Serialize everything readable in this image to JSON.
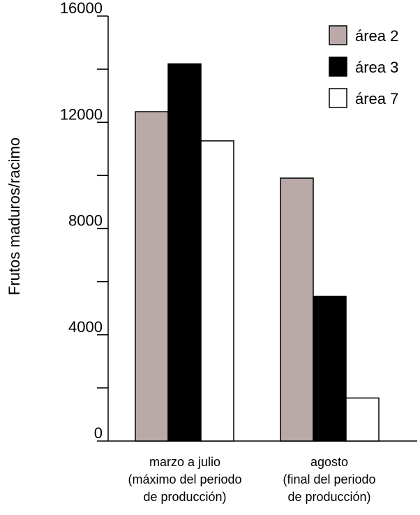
{
  "chart_data": {
    "type": "bar",
    "ylabel": "Frutos maduros/racimo",
    "xlabel": "",
    "ylim": [
      0,
      16000
    ],
    "y_ticks_labeled": [
      "0",
      "4000",
      "8000",
      "12000",
      "16000"
    ],
    "y_tick_values": [
      0,
      2000,
      4000,
      6000,
      8000,
      10000,
      12000,
      14000,
      16000
    ],
    "categories": [
      [
        "marzo a julio",
        "(máximo del periodo",
        "de producción)"
      ],
      [
        "agosto",
        "(final del periodo",
        "de producción)"
      ]
    ],
    "series": [
      {
        "name": "área 2",
        "color": "#b9aaa9",
        "values": [
          12400,
          9900
        ]
      },
      {
        "name": "área 3",
        "color": "#000000",
        "values": [
          14200,
          5450
        ]
      },
      {
        "name": "área 7",
        "color": "#ffffff",
        "values": [
          11300,
          1620
        ]
      }
    ],
    "legend_position": "top-right",
    "grid": false
  }
}
